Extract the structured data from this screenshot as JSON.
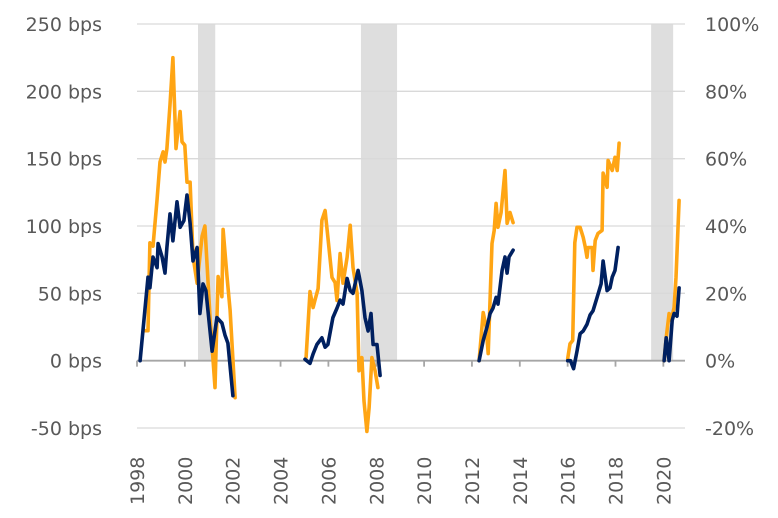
{
  "chart_data": {
    "type": "line",
    "title": "",
    "xlabel": "",
    "ylabel": "",
    "xlim": [
      1998,
      2020.95
    ],
    "ylim_left": [
      -50,
      250
    ],
    "ylim_right": [
      -20,
      100
    ],
    "grid": true,
    "x_ticks": [
      1998,
      2000,
      2002,
      2004,
      2006,
      2008,
      2010,
      2012,
      2014,
      2016,
      2018,
      2020
    ],
    "x_tick_labels": [
      "1998",
      "2000",
      "2002",
      "2004",
      "2006",
      "2008",
      "2010",
      "2012",
      "2014",
      "2016",
      "2018",
      "2020"
    ],
    "y_left_ticks": [
      250,
      200,
      150,
      100,
      50,
      0,
      -50
    ],
    "y_left_tick_labels": [
      "250 bps",
      "200 bps",
      "150 bps",
      "100 bps",
      "50 bps",
      "0 bps",
      "-50 bps"
    ],
    "y_right_ticks": [
      100,
      80,
      60,
      40,
      20,
      0,
      -20
    ],
    "y_right_tick_labels": [
      "100%",
      "80%",
      "60%",
      "40%",
      "20%",
      "0%",
      "-20%"
    ],
    "shaded_periods": [
      [
        2000.55,
        2001.27
      ],
      [
        2007.36,
        2008.87
      ],
      [
        2019.49,
        2020.41
      ]
    ],
    "shade_color": "#dedede",
    "series": [
      {
        "axis": "left",
        "unit": "bps",
        "color": "#002060",
        "segments": [
          [
            [
              1998.13,
              0
            ],
            [
              1998.46,
              62
            ],
            [
              1998.54,
              54
            ],
            [
              1998.67,
              77
            ],
            [
              1998.84,
              69
            ],
            [
              1998.88,
              87
            ],
            [
              1999.05,
              77
            ],
            [
              1999.17,
              65
            ],
            [
              1999.25,
              84
            ],
            [
              1999.38,
              109
            ],
            [
              1999.5,
              89
            ],
            [
              1999.67,
              118
            ],
            [
              1999.8,
              99
            ],
            [
              1999.96,
              104
            ],
            [
              2000.09,
              123
            ],
            [
              2000.22,
              102
            ],
            [
              2000.34,
              74
            ],
            [
              2000.51,
              84
            ],
            [
              2000.63,
              35
            ],
            [
              2000.76,
              57
            ],
            [
              2000.88,
              52
            ],
            [
              2001.14,
              7
            ],
            [
              2001.34,
              32
            ],
            [
              2001.55,
              28
            ],
            [
              2001.68,
              19
            ],
            [
              2001.8,
              13
            ],
            [
              2002.01,
              -26
            ]
          ],
          [
            [
              2005.02,
              1
            ],
            [
              2005.23,
              -2
            ],
            [
              2005.36,
              5
            ],
            [
              2005.52,
              12
            ],
            [
              2005.73,
              17
            ],
            [
              2005.86,
              10
            ],
            [
              2005.98,
              12
            ],
            [
              2006.19,
              32
            ],
            [
              2006.36,
              39
            ],
            [
              2006.49,
              45
            ],
            [
              2006.61,
              42
            ],
            [
              2006.78,
              61
            ],
            [
              2006.91,
              52
            ],
            [
              2007.03,
              50
            ],
            [
              2007.24,
              67
            ],
            [
              2007.4,
              52
            ],
            [
              2007.53,
              32
            ],
            [
              2007.66,
              22
            ],
            [
              2007.78,
              35
            ],
            [
              2007.87,
              12
            ],
            [
              2008.03,
              12
            ],
            [
              2008.16,
              -11
            ]
          ],
          [
            [
              2012.3,
              0
            ],
            [
              2012.47,
              15
            ],
            [
              2012.63,
              25
            ],
            [
              2012.76,
              35
            ],
            [
              2012.88,
              39
            ],
            [
              2013.01,
              47
            ],
            [
              2013.09,
              42
            ],
            [
              2013.26,
              67
            ],
            [
              2013.38,
              77
            ],
            [
              2013.47,
              65
            ],
            [
              2013.55,
              77
            ],
            [
              2013.72,
              82
            ]
          ],
          [
            [
              2016.0,
              0
            ],
            [
              2016.12,
              0
            ],
            [
              2016.25,
              -6
            ],
            [
              2016.39,
              7
            ],
            [
              2016.52,
              20
            ],
            [
              2016.65,
              22
            ],
            [
              2016.81,
              27
            ],
            [
              2016.94,
              34
            ],
            [
              2017.06,
              37
            ],
            [
              2017.23,
              47
            ],
            [
              2017.4,
              57
            ],
            [
              2017.48,
              74
            ],
            [
              2017.65,
              52
            ],
            [
              2017.77,
              54
            ],
            [
              2017.86,
              62
            ],
            [
              2017.98,
              67
            ],
            [
              2018.11,
              84
            ]
          ],
          [
            [
              2020.03,
              0
            ],
            [
              2020.12,
              17
            ],
            [
              2020.24,
              0
            ],
            [
              2020.37,
              30
            ],
            [
              2020.45,
              35
            ],
            [
              2020.57,
              33
            ],
            [
              2020.66,
              54
            ]
          ]
        ]
      },
      {
        "axis": "right",
        "unit": "%",
        "color": "#ffa514",
        "segments": [
          [
            [
              1998.33,
              8.9
            ],
            [
              1998.46,
              8.9
            ],
            [
              1998.54,
              35
            ],
            [
              1998.67,
              34
            ],
            [
              1998.84,
              48
            ],
            [
              1998.96,
              59
            ],
            [
              1999.09,
              62
            ],
            [
              1999.17,
              59
            ],
            [
              1999.25,
              63
            ],
            [
              1999.38,
              76
            ],
            [
              1999.5,
              90
            ],
            [
              1999.63,
              63
            ],
            [
              1999.8,
              74
            ],
            [
              1999.88,
              65
            ],
            [
              2000.0,
              64
            ],
            [
              2000.09,
              53
            ],
            [
              2000.22,
              53
            ],
            [
              2000.34,
              31
            ],
            [
              2000.51,
              23
            ],
            [
              2000.72,
              37
            ],
            [
              2000.84,
              40
            ],
            [
              2001.05,
              13
            ],
            [
              2001.26,
              -8
            ],
            [
              2001.39,
              25
            ],
            [
              2001.55,
              19
            ],
            [
              2001.6,
              39
            ],
            [
              2001.76,
              25
            ],
            [
              2001.89,
              15
            ],
            [
              2002.1,
              -11
            ]
          ],
          [
            [
              2005.07,
              1
            ],
            [
              2005.23,
              20.5
            ],
            [
              2005.36,
              15.8
            ],
            [
              2005.44,
              18
            ],
            [
              2005.57,
              21.4
            ],
            [
              2005.73,
              41.7
            ],
            [
              2005.86,
              44.6
            ],
            [
              2005.98,
              36.6
            ],
            [
              2006.15,
              24.7
            ],
            [
              2006.28,
              23.2
            ],
            [
              2006.36,
              17.9
            ],
            [
              2006.49,
              31.8
            ],
            [
              2006.61,
              23
            ],
            [
              2006.78,
              30.7
            ],
            [
              2006.91,
              40.2
            ],
            [
              2007.03,
              27.7
            ],
            [
              2007.2,
              20
            ],
            [
              2007.28,
              -3
            ],
            [
              2007.4,
              0.9
            ],
            [
              2007.49,
              -12
            ],
            [
              2007.61,
              -21
            ],
            [
              2007.7,
              -14
            ],
            [
              2007.82,
              0.9
            ],
            [
              2007.95,
              -3
            ],
            [
              2008.07,
              -8
            ]
          ],
          [
            [
              2012.3,
              0
            ],
            [
              2012.47,
              14.3
            ],
            [
              2012.59,
              10
            ],
            [
              2012.68,
              2.1
            ],
            [
              2012.84,
              34.8
            ],
            [
              2012.93,
              38.7
            ],
            [
              2013.01,
              46.7
            ],
            [
              2013.09,
              39.6
            ],
            [
              2013.22,
              44
            ],
            [
              2013.38,
              56.5
            ],
            [
              2013.47,
              40.8
            ],
            [
              2013.59,
              44
            ],
            [
              2013.72,
              41
            ]
          ],
          [
            [
              2016.0,
              0.6
            ],
            [
              2016.1,
              5
            ],
            [
              2016.21,
              6
            ],
            [
              2016.3,
              35
            ],
            [
              2016.39,
              39.6
            ],
            [
              2016.52,
              39.6
            ],
            [
              2016.65,
              36.6
            ],
            [
              2016.73,
              34
            ],
            [
              2016.81,
              30.7
            ],
            [
              2016.85,
              33.6
            ],
            [
              2017.02,
              33.6
            ],
            [
              2017.06,
              26.8
            ],
            [
              2017.15,
              35.7
            ],
            [
              2017.27,
              37.8
            ],
            [
              2017.44,
              38.7
            ],
            [
              2017.48,
              55.7
            ],
            [
              2017.65,
              51.5
            ],
            [
              2017.69,
              59.5
            ],
            [
              2017.86,
              56.5
            ],
            [
              2017.98,
              60.4
            ],
            [
              2018.07,
              56.5
            ],
            [
              2018.15,
              64.6
            ]
          ],
          [
            [
              2020.03,
              0
            ],
            [
              2020.12,
              6.8
            ],
            [
              2020.24,
              14
            ],
            [
              2020.33,
              12
            ],
            [
              2020.45,
              15.8
            ],
            [
              2020.53,
              24.7
            ],
            [
              2020.66,
              47.6
            ]
          ]
        ]
      }
    ]
  }
}
